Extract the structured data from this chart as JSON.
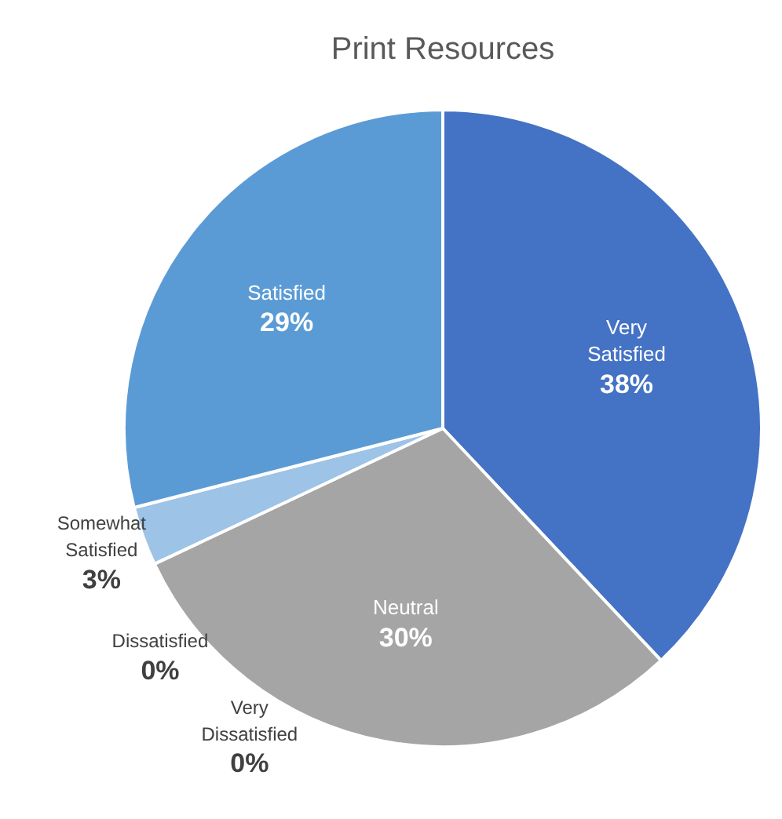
{
  "chart_data": {
    "type": "pie",
    "title": "Print Resources",
    "categories": [
      "Very Satisfied",
      "Neutral",
      "Very Dissatisfied",
      "Dissatisfied",
      "Somewhat Satisfied",
      "Satisfied"
    ],
    "values": [
      38,
      30,
      0,
      0,
      3,
      29
    ],
    "value_labels": [
      "38%",
      "30%",
      "0%",
      "0%",
      "3%",
      "29%"
    ],
    "colors": [
      "#4472c4",
      "#a5a5a5",
      "#ed7d31",
      "#ffc000",
      "#9dc3e6",
      "#5b9bd5"
    ],
    "data_labels": true,
    "legend": false
  }
}
